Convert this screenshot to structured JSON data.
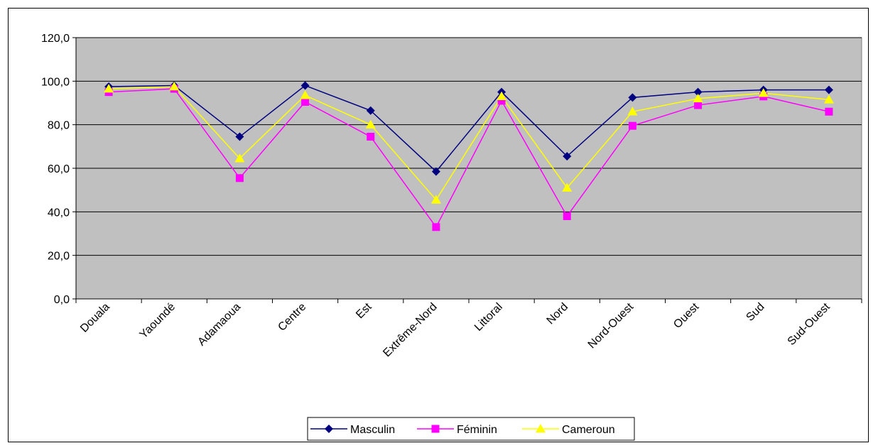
{
  "chart_data": {
    "type": "line",
    "categories": [
      "Douala",
      "Yaoundé",
      "Adamaoua",
      "Centre",
      "Est",
      "Extrême-Nord",
      "Littoral",
      "Nord",
      "Nord-Ouest",
      "Ouest",
      "Sud",
      "Sud-Ouest"
    ],
    "series": [
      {
        "name": "Masculin",
        "color": "#000080",
        "marker": "diamond",
        "values": [
          97.5,
          98.0,
          74.5,
          98.0,
          86.5,
          58.5,
          95.0,
          65.5,
          92.5,
          95.0,
          96.0,
          96.0
        ]
      },
      {
        "name": "Féminin",
        "color": "#ff00ff",
        "marker": "square",
        "values": [
          95.0,
          96.5,
          55.5,
          90.5,
          74.5,
          33.0,
          91.0,
          38.0,
          79.5,
          89.0,
          93.0,
          86.0
        ]
      },
      {
        "name": "Cameroun",
        "color": "#ffff00",
        "marker": "triangle",
        "values": [
          96.5,
          97.5,
          64.5,
          93.5,
          80.0,
          45.5,
          93.0,
          51.0,
          86.0,
          92.0,
          94.5,
          91.5
        ]
      }
    ],
    "yticks": [
      "0,0",
      "20,0",
      "40,0",
      "60,0",
      "80,0",
      "100,0",
      "120,0"
    ],
    "ylim": [
      0,
      120
    ],
    "grid": true,
    "plot_background": "#c0c0c0",
    "legend_position": "bottom"
  }
}
